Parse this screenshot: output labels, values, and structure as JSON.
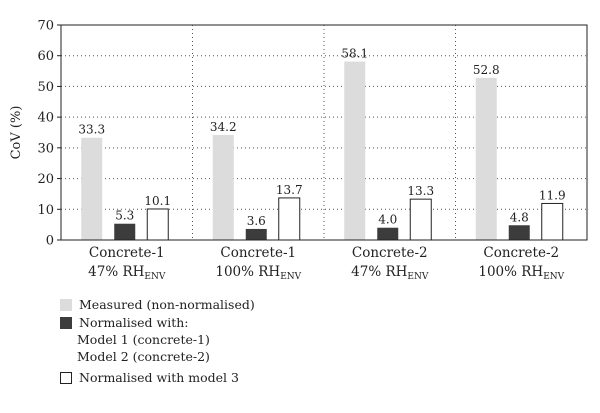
{
  "chart_data": {
    "type": "bar",
    "ylabel": "CoV (%)",
    "ylim": [
      0,
      70
    ],
    "yticks": [
      "0",
      "10",
      "20",
      "30",
      "40",
      "50",
      "60",
      "70"
    ],
    "grid": true,
    "categories": [
      {
        "line1": "Concrete-1",
        "line2_main": "47% RH",
        "line2_sub": "ENV"
      },
      {
        "line1": "Concrete-1",
        "line2_main": "100% RH",
        "line2_sub": "ENV"
      },
      {
        "line1": "Concrete-2",
        "line2_main": "47% RH",
        "line2_sub": "ENV"
      },
      {
        "line1": "Concrete-2",
        "line2_main": "100% RH",
        "line2_sub": "ENV"
      }
    ],
    "series": [
      {
        "name": "Measured (non-normalised)",
        "values": [
          33.3,
          34.2,
          58.1,
          52.8
        ],
        "labels": [
          "33.3",
          "34.2",
          "58.1",
          "52.8"
        ],
        "color": "#dcdcdc"
      },
      {
        "name": "Normalised with:",
        "values": [
          5.3,
          3.6,
          4.0,
          4.8
        ],
        "labels": [
          "5.3",
          "3.6",
          "4.0",
          "4.8"
        ],
        "color": "#3c3c3c"
      },
      {
        "name": "Normalised with model 3",
        "values": [
          10.1,
          13.7,
          13.3,
          11.9
        ],
        "labels": [
          "10.1",
          "13.7",
          "13.3",
          "11.9"
        ],
        "color": "#ffffff"
      }
    ]
  },
  "legend": {
    "measured": "Measured (non-normalised)",
    "normalised_with": "Normalised with:",
    "model1": "Model 1 (concrete-1)",
    "model2": "Model 2 (concrete-2)",
    "model3": "Normalised with model 3"
  }
}
